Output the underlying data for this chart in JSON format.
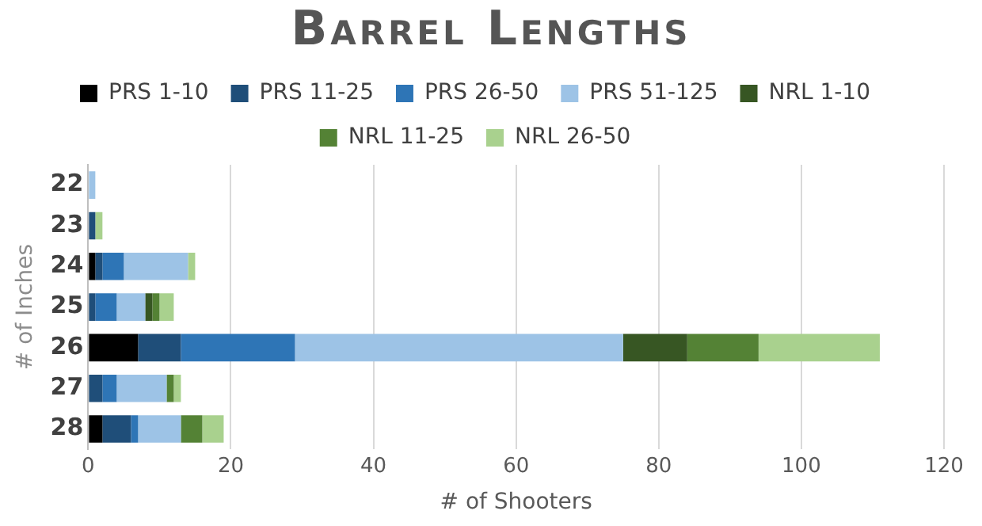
{
  "chart_data": {
    "type": "bar",
    "title": "Barrel Lengths",
    "orientation": "horizontal",
    "stacked": true,
    "xlabel": "# of Shooters",
    "ylabel": "# of Inches",
    "categories": [
      "22",
      "23",
      "24",
      "25",
      "26",
      "27",
      "28"
    ],
    "series": [
      {
        "name": "PRS 1-10",
        "color": "#000000",
        "values": [
          0,
          0,
          1,
          0,
          7,
          0,
          2
        ]
      },
      {
        "name": "PRS 11-25",
        "color": "#1f4e79",
        "values": [
          0,
          1,
          1,
          1,
          6,
          2,
          4
        ]
      },
      {
        "name": "PRS 26-50",
        "color": "#2e75b6",
        "values": [
          0,
          0,
          3,
          3,
          16,
          2,
          1
        ]
      },
      {
        "name": "PRS 51-125",
        "color": "#9dc3e6",
        "values": [
          1,
          0,
          9,
          4,
          46,
          7,
          6
        ]
      },
      {
        "name": "NRL 1-10",
        "color": "#375623",
        "values": [
          0,
          0,
          0,
          1,
          9,
          0,
          0
        ]
      },
      {
        "name": "NRL 11-25",
        "color": "#548235",
        "values": [
          0,
          0,
          0,
          1,
          10,
          1,
          3
        ]
      },
      {
        "name": "NRL 26-50",
        "color": "#a9d18e",
        "values": [
          0,
          1,
          1,
          2,
          17,
          1,
          3
        ]
      }
    ],
    "xlim": [
      0,
      120
    ],
    "xticks": [
      0,
      20,
      40,
      60,
      80,
      100,
      120
    ],
    "grid": "x",
    "legend": "top"
  }
}
